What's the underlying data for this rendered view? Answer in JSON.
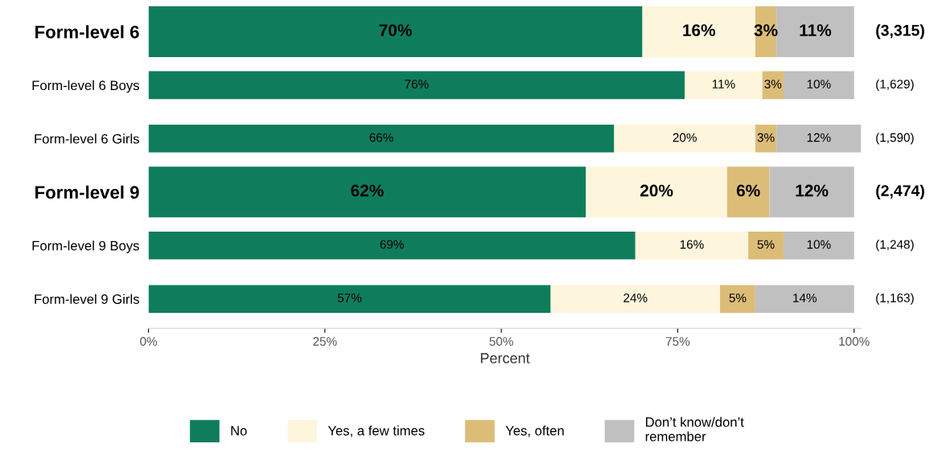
{
  "chart_data": {
    "type": "bar",
    "orientation": "horizontal",
    "stacked": true,
    "categories": [
      "Form-level 6",
      "Form-level 6 Boys",
      "Form-level 6 Girls",
      "Form-level 9",
      "Form-level 9 Boys",
      "Form-level 9 Girls"
    ],
    "series": [
      {
        "name": "No",
        "color": "#0f7d5c",
        "values": [
          70,
          76,
          66,
          62,
          69,
          57
        ],
        "value_labels": [
          "70%",
          "76%",
          "66%",
          "62%",
          "69%",
          "57%"
        ]
      },
      {
        "name": "Yes, a few times",
        "color": "#fdf5dc",
        "values": [
          16,
          11,
          20,
          20,
          16,
          24
        ],
        "value_labels": [
          "16%",
          "11%",
          "20%",
          "20%",
          "16%",
          "24%"
        ]
      },
      {
        "name": "Yes, often",
        "color": "#dcbd78",
        "values": [
          3,
          3,
          3,
          6,
          5,
          5
        ],
        "value_labels": [
          "3%",
          "3%",
          "3%",
          "6%",
          "5%",
          "5%"
        ]
      },
      {
        "name": "Don’t know/don’t\nremember",
        "color": "#c0c0c0",
        "values": [
          11,
          10,
          12,
          12,
          10,
          14
        ],
        "value_labels": [
          "11%",
          "10%",
          "12%",
          "12%",
          "10%",
          "14%"
        ]
      }
    ],
    "annotations": [
      "(3,315)",
      "(1,629)",
      "(1,590)",
      "(2,474)",
      "(1,248)",
      "(1,163)"
    ],
    "xlabel": "Percent",
    "xlim": [
      0,
      101
    ],
    "xticks": [
      {
        "value": 0,
        "label": "0%"
      },
      {
        "value": 25,
        "label": "25%"
      },
      {
        "value": 50,
        "label": "50%"
      },
      {
        "value": 75,
        "label": "75%"
      },
      {
        "value": 100,
        "label": "100%"
      }
    ],
    "grid": false,
    "legend": "bottom"
  }
}
